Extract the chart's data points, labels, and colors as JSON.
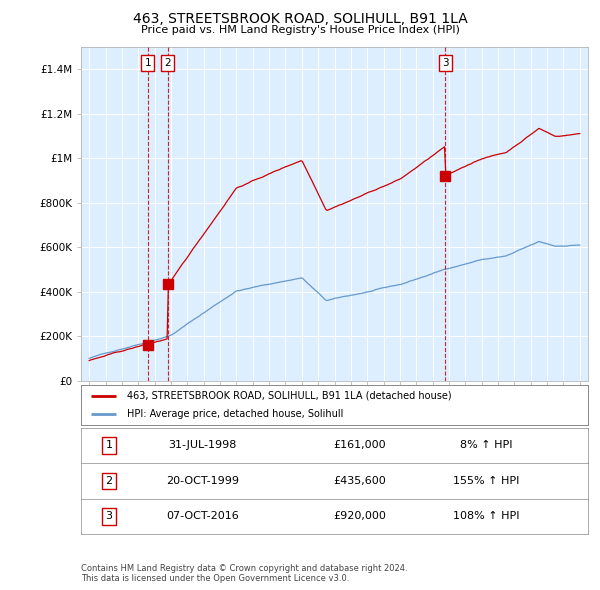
{
  "title": "463, STREETSBROOK ROAD, SOLIHULL, B91 1LA",
  "subtitle": "Price paid vs. HM Land Registry's House Price Index (HPI)",
  "property_label": "463, STREETSBROOK ROAD, SOLIHULL, B91 1LA (detached house)",
  "hpi_label": "HPI: Average price, detached house, Solihull",
  "footnote1": "Contains HM Land Registry data © Crown copyright and database right 2024.",
  "footnote2": "This data is licensed under the Open Government Licence v3.0.",
  "sales": [
    {
      "index": 1,
      "date": "31-JUL-1998",
      "x": 1998.58,
      "price": 161000,
      "pct": "8%",
      "direction": "↑"
    },
    {
      "index": 2,
      "date": "20-OCT-1999",
      "x": 1999.8,
      "price": 435600,
      "pct": "155%",
      "direction": "↑"
    },
    {
      "index": 3,
      "date": "07-OCT-2016",
      "x": 2016.77,
      "price": 920000,
      "pct": "108%",
      "direction": "↑"
    }
  ],
  "ylim": [
    0,
    1500000
  ],
  "yticks": [
    0,
    200000,
    400000,
    600000,
    800000,
    1000000,
    1200000,
    1400000
  ],
  "ytick_labels": [
    "£0",
    "£200K",
    "£400K",
    "£600K",
    "£800K",
    "£1M",
    "£1.2M",
    "£1.4M"
  ],
  "xlim_start": 1994.5,
  "xlim_end": 2025.5,
  "property_color": "#cc0000",
  "hpi_color": "#6699cc",
  "vline_color": "#cc0000",
  "plot_bg_color": "#ddeeff",
  "background_color": "#ffffff",
  "grid_color": "#ffffff"
}
